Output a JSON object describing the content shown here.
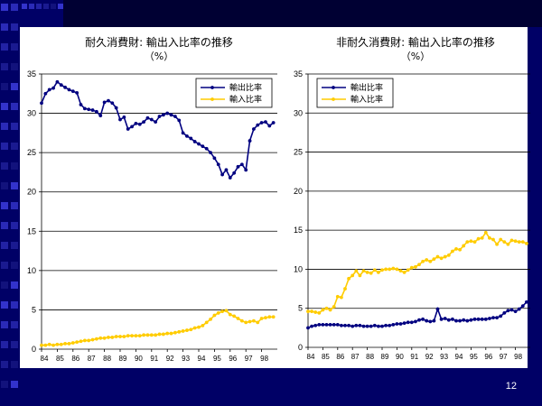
{
  "slide": {
    "page_number": "12"
  },
  "colors": {
    "background": "#000066",
    "export_series": "#000080",
    "import_series": "#ffcc00"
  },
  "chart_data": [
    {
      "type": "line",
      "title": "耐久消費財: 輸出入比率の推移",
      "subtitle": "（%）",
      "x_tick_labels": [
        "84",
        "85",
        "86",
        "87",
        "88",
        "89",
        "90",
        "91",
        "92",
        "93",
        "94",
        "95",
        "96",
        "97",
        "98"
      ],
      "xlim": [
        84,
        99
      ],
      "ylim": [
        0,
        35
      ],
      "y_ticks": [
        0,
        5,
        10,
        15,
        20,
        25,
        30,
        35
      ],
      "grid": "horizontal",
      "legend": "top-right",
      "series": [
        {
          "name": "輸出比率",
          "color": "#000080",
          "x": [
            84.0,
            84.25,
            84.5,
            84.75,
            85.0,
            85.25,
            85.5,
            85.75,
            86.0,
            86.25,
            86.5,
            86.75,
            87.0,
            87.25,
            87.5,
            87.75,
            88.0,
            88.25,
            88.5,
            88.75,
            89.0,
            89.25,
            89.5,
            89.75,
            90.0,
            90.25,
            90.5,
            90.75,
            91.0,
            91.25,
            91.5,
            91.75,
            92.0,
            92.25,
            92.5,
            92.75,
            93.0,
            93.25,
            93.5,
            93.75,
            94.0,
            94.25,
            94.5,
            94.75,
            95.0,
            95.25,
            95.5,
            95.75,
            96.0,
            96.25,
            96.5,
            96.75,
            97.0,
            97.25,
            97.5,
            97.75,
            98.0,
            98.25,
            98.5,
            98.75
          ],
          "values": [
            31.3,
            32.5,
            33.0,
            33.2,
            34.0,
            33.6,
            33.3,
            33.0,
            32.8,
            32.6,
            31.1,
            30.6,
            30.5,
            30.4,
            30.2,
            29.7,
            31.4,
            31.6,
            31.3,
            30.7,
            29.2,
            29.5,
            28.0,
            28.3,
            28.7,
            28.6,
            28.9,
            29.4,
            29.2,
            28.9,
            29.6,
            29.8,
            30.0,
            29.8,
            29.6,
            29.1,
            27.5,
            27.1,
            26.8,
            26.4,
            26.1,
            25.8,
            25.5,
            25.0,
            24.3,
            23.5,
            22.2,
            22.8,
            21.8,
            22.4,
            23.2,
            23.5,
            22.8,
            26.5,
            28.0,
            28.5,
            28.8,
            28.9,
            28.4,
            28.8
          ]
        },
        {
          "name": "輸入比率",
          "color": "#ffcc00",
          "x": [
            84.0,
            84.25,
            84.5,
            84.75,
            85.0,
            85.25,
            85.5,
            85.75,
            86.0,
            86.25,
            86.5,
            86.75,
            87.0,
            87.25,
            87.5,
            87.75,
            88.0,
            88.25,
            88.5,
            88.75,
            89.0,
            89.25,
            89.5,
            89.75,
            90.0,
            90.25,
            90.5,
            90.75,
            91.0,
            91.25,
            91.5,
            91.75,
            92.0,
            92.25,
            92.5,
            92.75,
            93.0,
            93.25,
            93.5,
            93.75,
            94.0,
            94.25,
            94.5,
            94.75,
            95.0,
            95.25,
            95.5,
            95.75,
            96.0,
            96.25,
            96.5,
            96.75,
            97.0,
            97.25,
            97.5,
            97.75,
            98.0,
            98.25,
            98.5,
            98.75
          ],
          "values": [
            0.5,
            0.5,
            0.6,
            0.5,
            0.6,
            0.6,
            0.7,
            0.7,
            0.8,
            0.9,
            1.0,
            1.1,
            1.1,
            1.2,
            1.3,
            1.4,
            1.4,
            1.5,
            1.5,
            1.6,
            1.6,
            1.6,
            1.7,
            1.7,
            1.7,
            1.7,
            1.8,
            1.8,
            1.8,
            1.8,
            1.9,
            1.9,
            2.0,
            2.0,
            2.1,
            2.2,
            2.3,
            2.4,
            2.5,
            2.7,
            2.8,
            3.0,
            3.4,
            3.8,
            4.3,
            4.6,
            4.8,
            4.9,
            4.4,
            4.2,
            3.9,
            3.6,
            3.4,
            3.5,
            3.6,
            3.4,
            3.9,
            4.0,
            4.1,
            4.1
          ]
        }
      ]
    },
    {
      "type": "line",
      "title": "非耐久消費財: 輸出入比率の推移",
      "subtitle": "（%）",
      "x_tick_labels": [
        "84",
        "85",
        "86",
        "87",
        "88",
        "89",
        "90",
        "91",
        "92",
        "93",
        "94",
        "95",
        "96",
        "97",
        "98"
      ],
      "xlim": [
        84,
        99
      ],
      "ylim": [
        0,
        35
      ],
      "y_ticks": [
        0,
        5,
        10,
        15,
        20,
        25,
        30,
        35
      ],
      "grid": "horizontal",
      "legend": "top-left",
      "series": [
        {
          "name": "輸出比率",
          "color": "#000080",
          "x": [
            84.0,
            84.25,
            84.5,
            84.75,
            85.0,
            85.25,
            85.5,
            85.75,
            86.0,
            86.25,
            86.5,
            86.75,
            87.0,
            87.25,
            87.5,
            87.75,
            88.0,
            88.25,
            88.5,
            88.75,
            89.0,
            89.25,
            89.5,
            89.75,
            90.0,
            90.25,
            90.5,
            90.75,
            91.0,
            91.25,
            91.5,
            91.75,
            92.0,
            92.25,
            92.5,
            92.75,
            93.0,
            93.25,
            93.5,
            93.75,
            94.0,
            94.25,
            94.5,
            94.75,
            95.0,
            95.25,
            95.5,
            95.75,
            96.0,
            96.25,
            96.5,
            96.75,
            97.0,
            97.25,
            97.5,
            97.75,
            98.0,
            98.25,
            98.5,
            98.75
          ],
          "values": [
            2.5,
            2.7,
            2.8,
            2.9,
            2.9,
            2.9,
            2.9,
            2.9,
            2.9,
            2.8,
            2.8,
            2.8,
            2.7,
            2.8,
            2.8,
            2.7,
            2.7,
            2.7,
            2.8,
            2.7,
            2.7,
            2.8,
            2.8,
            2.9,
            3.0,
            3.0,
            3.1,
            3.2,
            3.2,
            3.3,
            3.5,
            3.6,
            3.4,
            3.3,
            3.4,
            4.9,
            3.6,
            3.7,
            3.5,
            3.6,
            3.4,
            3.4,
            3.5,
            3.4,
            3.5,
            3.6,
            3.6,
            3.6,
            3.6,
            3.7,
            3.8,
            3.8,
            4.0,
            4.4,
            4.7,
            4.8,
            4.6,
            4.9,
            5.3,
            5.8
          ]
        },
        {
          "name": "輸入比率",
          "color": "#ffcc00",
          "x": [
            84.0,
            84.25,
            84.5,
            84.75,
            85.0,
            85.25,
            85.5,
            85.75,
            86.0,
            86.25,
            86.5,
            86.75,
            87.0,
            87.25,
            87.5,
            87.75,
            88.0,
            88.25,
            88.5,
            88.75,
            89.0,
            89.25,
            89.5,
            89.75,
            90.0,
            90.25,
            90.5,
            90.75,
            91.0,
            91.25,
            91.5,
            91.75,
            92.0,
            92.25,
            92.5,
            92.75,
            93.0,
            93.25,
            93.5,
            93.75,
            94.0,
            94.25,
            94.5,
            94.75,
            95.0,
            95.25,
            95.5,
            95.75,
            96.0,
            96.25,
            96.5,
            96.75,
            97.0,
            97.25,
            97.5,
            97.75,
            98.0,
            98.25,
            98.5,
            98.75
          ],
          "values": [
            4.6,
            4.6,
            4.5,
            4.4,
            4.8,
            5.0,
            4.8,
            5.2,
            6.5,
            6.4,
            7.5,
            8.8,
            9.2,
            9.8,
            9.2,
            9.8,
            9.6,
            9.5,
            9.9,
            9.6,
            9.9,
            10.0,
            10.0,
            10.1,
            10.0,
            9.8,
            9.6,
            9.9,
            10.2,
            10.3,
            10.6,
            11.0,
            11.2,
            11.0,
            11.3,
            11.6,
            11.4,
            11.6,
            11.8,
            12.3,
            12.6,
            12.5,
            13.0,
            13.5,
            13.6,
            13.5,
            13.9,
            14.0,
            14.7,
            14.0,
            13.8,
            13.2,
            13.8,
            13.5,
            13.2,
            13.7,
            13.6,
            13.5,
            13.5,
            13.3
          ]
        }
      ]
    }
  ]
}
